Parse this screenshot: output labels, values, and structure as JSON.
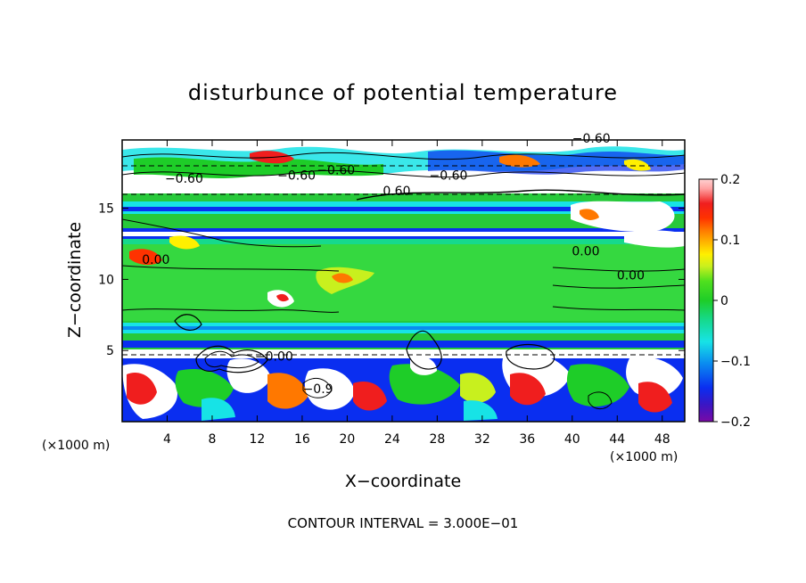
{
  "chart_data": {
    "type": "heatmap",
    "title": "disturbunce of potential temperature",
    "xlabel": "X−coordinate",
    "ylabel": "Z−coordinate",
    "x_unit_label_left": "(×1000 m)",
    "x_unit_label_right": "(×1000 m)",
    "xlim": [
      0,
      50
    ],
    "ylim": [
      0,
      19.8
    ],
    "x_ticks": [
      4,
      8,
      12,
      16,
      20,
      24,
      28,
      32,
      36,
      40,
      44,
      48
    ],
    "y_ticks": [
      5,
      10,
      15
    ],
    "colorbar": {
      "range": [
        -0.2,
        0.2
      ],
      "ticks": [
        {
          "value": 0.2,
          "label": "0.2"
        },
        {
          "value": 0.1,
          "label": "0.1"
        },
        {
          "value": 0.0,
          "label": "0"
        },
        {
          "value": -0.1,
          "label": "−0.1"
        },
        {
          "value": -0.2,
          "label": "−0.2"
        }
      ],
      "colors": [
        "#7a0aa6",
        "#3a16c4",
        "#0a2ef0",
        "#0a8cf0",
        "#17e3e6",
        "#16d98c",
        "#1ecd28",
        "#50e01e",
        "#c8f01e",
        "#fff000",
        "#ffb400",
        "#ff7800",
        "#ff3200",
        "#f01e1e",
        "#ffa0a0",
        "#ffd2d2"
      ]
    },
    "contour_labels": [
      {
        "text": "−0.60",
        "x": 41.7,
        "y": 19.6
      },
      {
        "text": "−0.60",
        "x": 5.5,
        "y": 16.8
      },
      {
        "text": "−0.60",
        "x": 15.5,
        "y": 17.0
      },
      {
        "text": "−0.60",
        "x": 19.0,
        "y": 17.4
      },
      {
        "text": "0.60",
        "x": 24.4,
        "y": 15.9
      },
      {
        "text": "−0.60",
        "x": 29.0,
        "y": 17.0
      },
      {
        "text": "0.00",
        "x": 3.0,
        "y": 11.1
      },
      {
        "text": "0.00",
        "x": 41.2,
        "y": 11.7
      },
      {
        "text": "0.00",
        "x": 45.2,
        "y": 10.0
      },
      {
        "text": "−0.00",
        "x": 13.5,
        "y": 4.3
      },
      {
        "text": "−0.9",
        "x": 17.4,
        "y": 2.0
      }
    ],
    "contour_interval_note": "CONTOUR INTERVAL = 3.000E−01",
    "grid": false
  }
}
